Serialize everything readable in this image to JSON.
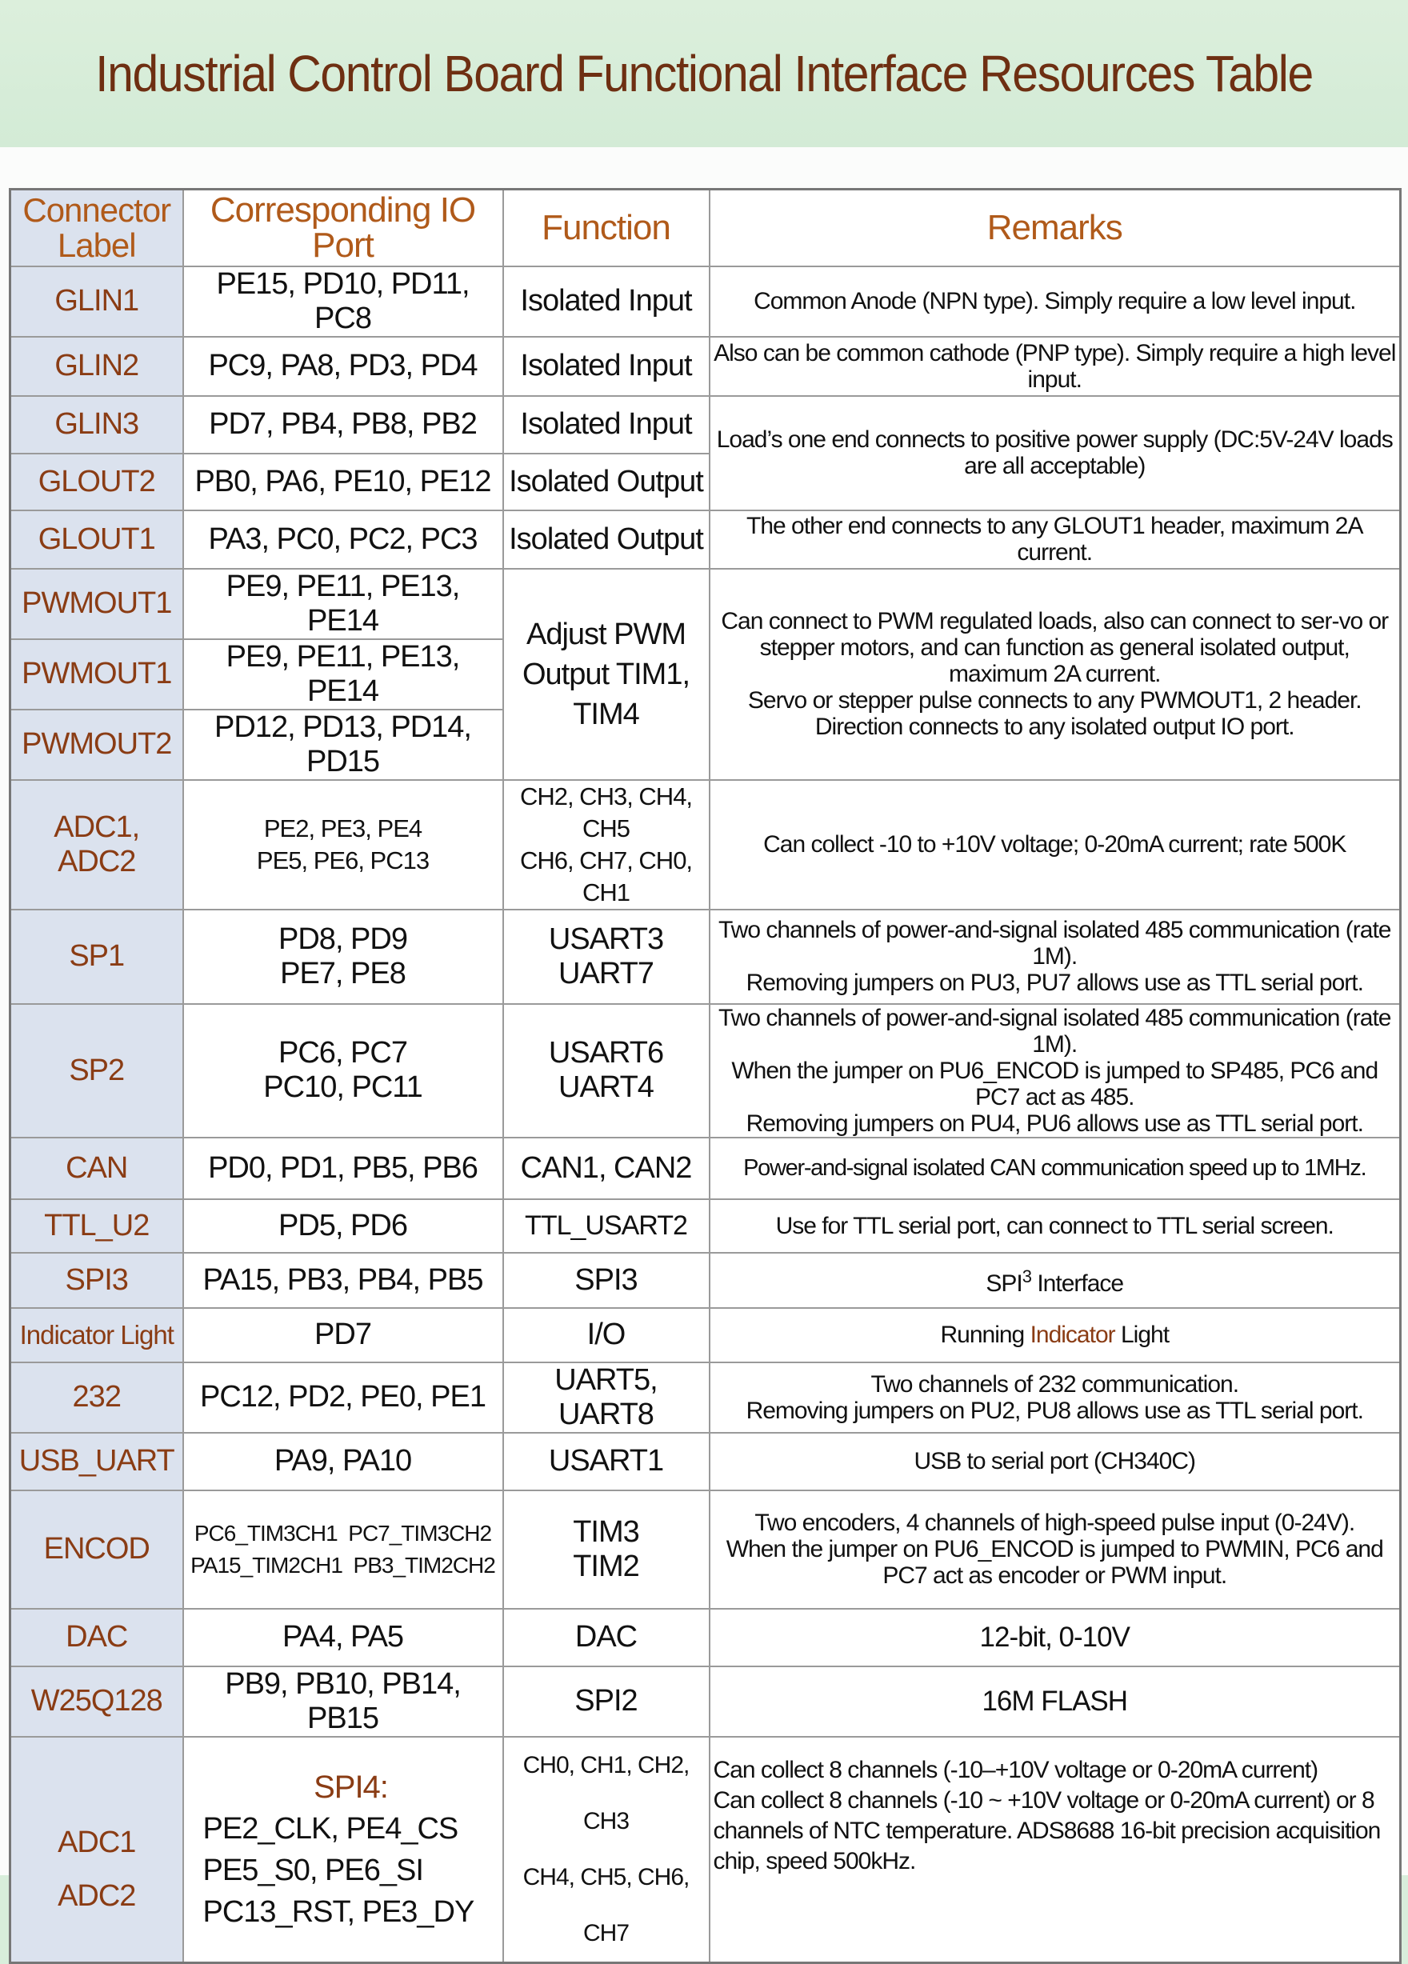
{
  "title": "Industrial Control Board Functional Interface Resources Table",
  "colors": {
    "background": "#d8eedb",
    "title": "#6e2f12",
    "header_text": "#b05a1a",
    "label_text": "#8a3c14",
    "label_bg": "#dbe2ee"
  },
  "headers": {
    "label": "Connector Label",
    "port": "Corresponding IO Port",
    "function": "Function",
    "remarks": "Remarks"
  },
  "rows": {
    "glin1": {
      "label": "GLIN1",
      "port": "PE15, PD10, PD11, PC8",
      "function": "Isolated Input",
      "remark": "Common Anode (NPN type). Simply require a low level input."
    },
    "glin2": {
      "label": "GLIN2",
      "port": "PC9, PA8, PD3, PD4",
      "function": "Isolated Input",
      "remark": "Also can be common cathode (PNP type). Simply require a high level input."
    },
    "glin3": {
      "label": "GLIN3",
      "port": "PD7, PB4, PB8, PB2",
      "function": "Isolated Input",
      "remark": "Load’s one end connects to positive power supply (DC:5V-24V loads are all acceptable)"
    },
    "glout2": {
      "label": "GLOUT2",
      "port": "PB0, PA6, PE10, PE12",
      "function": "Isolated Output"
    },
    "glout1": {
      "label": "GLOUT1",
      "port": "PA3, PC0, PC2, PC3",
      "function": "Isolated Output",
      "remark": "The other end connects to any GLOUT1 header, maximum 2A current."
    },
    "pwmout1a": {
      "label": "PWMOUT1",
      "port": "PE9, PE11, PE13, PE14",
      "function": "Adjust PWM Output TIM1, TIM4",
      "remark_1": "Can connect to PWM regulated loads, also can connect to ser-vo or stepper motors, and can function as general isolated output, maximum 2A current.",
      "remark_2": "Servo or stepper pulse connects to any PWMOUT1, 2 header. Direction connects to any isolated output IO port."
    },
    "pwmout1b": {
      "label": "PWMOUT1",
      "port": "PE9, PE11, PE13, PE14"
    },
    "pwmout2": {
      "label": "PWMOUT2",
      "port": "PD12, PD13, PD14, PD15"
    },
    "adc": {
      "label": "ADC1, ADC2",
      "port_1": "PE2, PE3, PE4",
      "port_2": "PE5, PE6, PC13",
      "function_1": "CH2, CH3, CH4, CH5",
      "function_2": "CH6, CH7, CH0, CH1",
      "remark": "Can collect -10 to +10V voltage; 0-20mA current; rate 500K"
    },
    "sp1": {
      "label": "SP1",
      "port_1": "PD8, PD9",
      "port_2": "PE7, PE8",
      "function_1": "USART3",
      "function_2": "UART7",
      "remark_1": "Two channels of power-and-signal isolated 485 communication (rate 1M).",
      "remark_2": "Removing jumpers on PU3, PU7 allows use as TTL serial port."
    },
    "sp2": {
      "label": "SP2",
      "port_1": "PC6, PC7",
      "port_2": "PC10, PC11",
      "function_1": "USART6",
      "function_2": "UART4",
      "remark_1": "Two channels of power-and-signal isolated 485 communication (rate 1M).",
      "remark_2": "When the jumper on PU6_ENCOD is jumped to SP485, PC6 and PC7 act as 485.",
      "remark_3": "Removing jumpers on PU4, PU6 allows use as TTL serial port."
    },
    "can": {
      "label": "CAN",
      "port": "PD0, PD1, PB5, PB6",
      "function": "CAN1, CAN2",
      "remark": "Power-and-signal isolated CAN communication speed up to 1MHz."
    },
    "ttl_u2": {
      "label": "TTL_U2",
      "port": "PD5, PD6",
      "function": "TTL_USART2",
      "remark": "Use for TTL serial port, can connect to TTL serial screen."
    },
    "spi3": {
      "label": "SPI3",
      "port": "PA15, PB3, PB4, PB5",
      "function": "SPI3",
      "remark_base": "SPI",
      "remark_sup": "3",
      "remark_rest": " Interface"
    },
    "indicator": {
      "label": "Indicator Light",
      "port": "PD7",
      "function": "I/O",
      "remark_1": "Running ",
      "remark_2": "Indicator",
      "remark_3": " Light"
    },
    "r232": {
      "label": "232",
      "port": "PC12, PD2, PE0, PE1",
      "function": "UART5, UART8",
      "remark_1": "Two channels of 232 communication.",
      "remark_2": "Removing jumpers on PU2, PU8 allows use as TTL serial port."
    },
    "usb_uart": {
      "label": "USB_UART",
      "port": "PA9, PA10",
      "function": "USART1",
      "remark": "USB to serial port (CH340C)"
    },
    "encod": {
      "label": "ENCOD",
      "port_1": "PC6_TIM3CH1  PC7_TIM3CH2",
      "port_2": "PA15_TIM2CH1  PB3_TIM2CH2",
      "function_1": "TIM3",
      "function_2": "TIM2",
      "remark_1": "Two encoders, 4 channels of high-speed pulse input (0-24V).",
      "remark_2": "When the jumper on PU6_ENCOD is jumped to PWMIN, PC6 and PC7 act as encoder or PWM input."
    },
    "dac": {
      "label": "DAC",
      "port": "PA4, PA5",
      "function": "DAC",
      "remark": "12-bit, 0-10V"
    },
    "w25q128": {
      "label": "W25Q128",
      "port": "PB9, PB10, PB14, PB15",
      "function": "SPI2",
      "remark": "16M FLASH"
    },
    "adc_ext": {
      "label_1": "ADC1",
      "label_2": "ADC2",
      "port_title": "SPI4:",
      "port_1": "PE2_CLK, PE4_CS",
      "port_2": "PE5_S0, PE6_SI",
      "port_3": "PC13_RST, PE3_DY",
      "function_1": "CH0, CH1, CH2, CH3",
      "function_2": "CH4, CH5, CH6, CH7",
      "remark_1": "Can collect 8 channels (-10–+10V voltage or 0-20mA current)",
      "remark_2": "Can collect 8 channels (-10 ~ +10V voltage or 0-20mA current) or 8 channels of NTC temperature.  ADS8688 16-bit precision acquisition chip, speed 500kHz."
    }
  }
}
